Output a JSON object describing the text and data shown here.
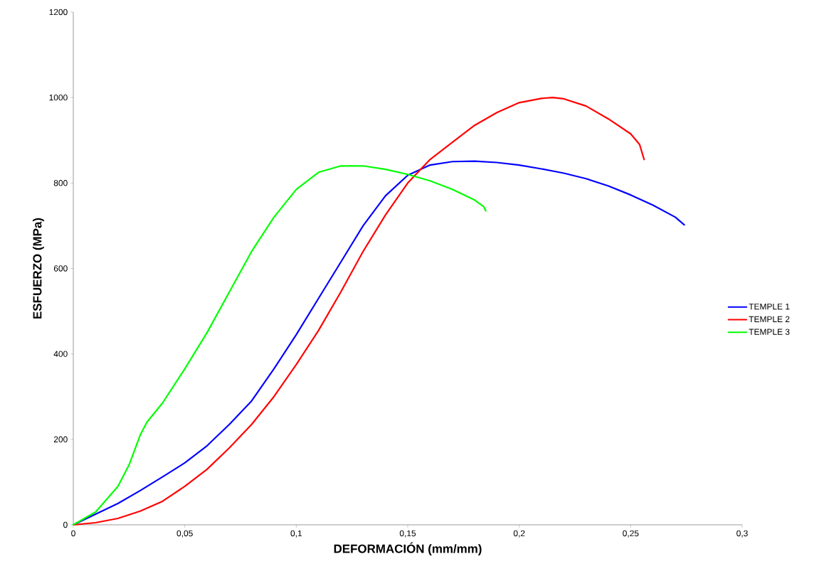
{
  "chart_data": {
    "type": "line",
    "xlabel": "DEFORMACIÓN (mm/mm)",
    "ylabel": "ESFUERZO (MPa)",
    "xlim": [
      0,
      0.3
    ],
    "ylim": [
      0,
      1200
    ],
    "xticks": [
      {
        "value": 0,
        "label": "0"
      },
      {
        "value": 0.05,
        "label": "0,05"
      },
      {
        "value": 0.1,
        "label": "0,1"
      },
      {
        "value": 0.15,
        "label": "0,15"
      },
      {
        "value": 0.2,
        "label": "0,2"
      },
      {
        "value": 0.25,
        "label": "0,25"
      },
      {
        "value": 0.3,
        "label": "0,3"
      }
    ],
    "yticks": [
      0,
      200,
      400,
      600,
      800,
      1000,
      1200
    ],
    "grid": false,
    "legend": "right",
    "marker": "none",
    "line_style": "solid",
    "series": [
      {
        "name": "TEMPLE 1",
        "color": "#0000ff",
        "x": [
          0,
          0.01,
          0.02,
          0.03,
          0.04,
          0.05,
          0.06,
          0.07,
          0.08,
          0.09,
          0.1,
          0.11,
          0.12,
          0.13,
          0.14,
          0.15,
          0.16,
          0.17,
          0.18,
          0.19,
          0.2,
          0.21,
          0.22,
          0.23,
          0.24,
          0.25,
          0.26,
          0.27,
          0.274
        ],
        "values": [
          0,
          25,
          50,
          80,
          112,
          145,
          185,
          235,
          290,
          365,
          445,
          530,
          615,
          700,
          770,
          818,
          842,
          850,
          851,
          848,
          842,
          833,
          823,
          810,
          793,
          772,
          748,
          720,
          702
        ]
      },
      {
        "name": "TEMPLE 2",
        "color": "#ff0000",
        "x": [
          0,
          0.01,
          0.02,
          0.03,
          0.04,
          0.05,
          0.06,
          0.07,
          0.08,
          0.09,
          0.1,
          0.11,
          0.12,
          0.13,
          0.14,
          0.15,
          0.16,
          0.17,
          0.18,
          0.19,
          0.2,
          0.21,
          0.215,
          0.22,
          0.23,
          0.24,
          0.25,
          0.254,
          0.256
        ],
        "values": [
          0,
          5,
          15,
          32,
          55,
          90,
          130,
          180,
          235,
          300,
          375,
          455,
          545,
          640,
          725,
          800,
          855,
          895,
          935,
          965,
          988,
          998,
          1000,
          997,
          980,
          950,
          915,
          890,
          855
        ]
      },
      {
        "name": "TEMPLE 3",
        "color": "#00ff00",
        "x": [
          0,
          0.01,
          0.02,
          0.025,
          0.03,
          0.033,
          0.04,
          0.05,
          0.06,
          0.07,
          0.08,
          0.09,
          0.1,
          0.11,
          0.12,
          0.13,
          0.14,
          0.15,
          0.16,
          0.17,
          0.18,
          0.184,
          0.185
        ],
        "values": [
          0,
          30,
          90,
          140,
          210,
          240,
          285,
          365,
          450,
          545,
          640,
          720,
          785,
          825,
          840,
          840,
          832,
          820,
          805,
          785,
          760,
          745,
          735
        ]
      }
    ]
  }
}
